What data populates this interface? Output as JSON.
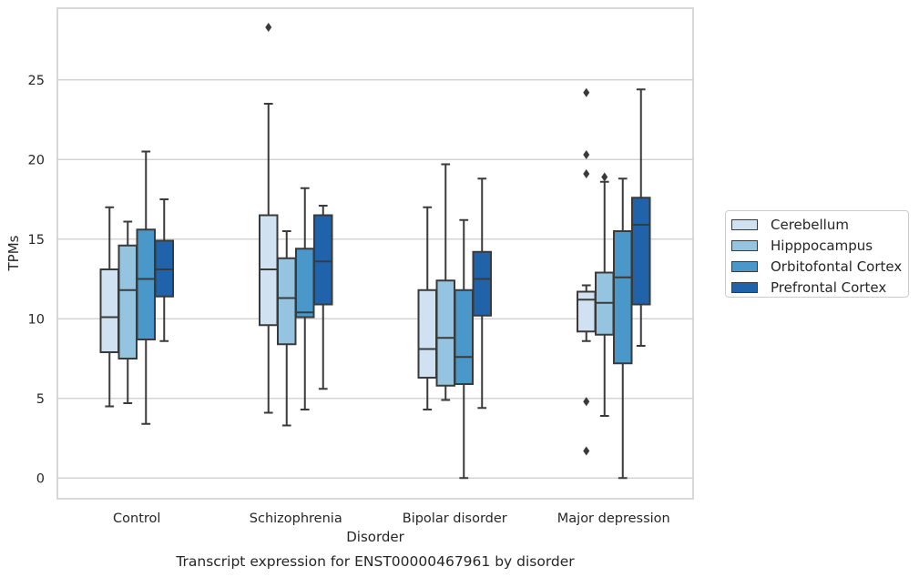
{
  "chart_data": {
    "type": "box",
    "title": "Transcript expression for ENST00000467961 by disorder",
    "xlabel": "Disorder",
    "ylabel": "TPMs",
    "ylim": [
      -1.3,
      29.5
    ],
    "yticks": [
      0,
      5,
      10,
      15,
      20,
      25
    ],
    "grid": "horizontal",
    "legend_position": "right",
    "categories": [
      "Control",
      "Schizophrenia",
      "Bipolar disorder",
      "Major depression"
    ],
    "series": [
      {
        "name": "Cerebellum",
        "color": "#d0e1f2",
        "boxes": [
          {
            "whisker_low": 4.5,
            "q1": 7.9,
            "median": 10.1,
            "q3": 13.1,
            "whisker_high": 17.0,
            "outliers": []
          },
          {
            "whisker_low": 4.1,
            "q1": 9.6,
            "median": 13.1,
            "q3": 16.5,
            "whisker_high": 23.5,
            "outliers": [
              28.3
            ]
          },
          {
            "whisker_low": 4.3,
            "q1": 6.3,
            "median": 8.1,
            "q3": 11.8,
            "whisker_high": 17.0,
            "outliers": []
          },
          {
            "whisker_low": 8.6,
            "q1": 9.2,
            "median": 11.2,
            "q3": 11.7,
            "whisker_high": 12.1,
            "outliers": [
              24.2,
              20.3,
              19.1,
              4.8,
              1.7
            ]
          }
        ]
      },
      {
        "name": "Hipppocampus",
        "color": "#94c4df",
        "boxes": [
          {
            "whisker_low": 4.7,
            "q1": 7.5,
            "median": 11.8,
            "q3": 14.6,
            "whisker_high": 16.1,
            "outliers": []
          },
          {
            "whisker_low": 3.3,
            "q1": 8.4,
            "median": 11.3,
            "q3": 13.8,
            "whisker_high": 15.5,
            "outliers": []
          },
          {
            "whisker_low": 4.9,
            "q1": 5.8,
            "median": 8.8,
            "q3": 12.4,
            "whisker_high": 19.7,
            "outliers": []
          },
          {
            "whisker_low": 3.9,
            "q1": 9.0,
            "median": 11.0,
            "q3": 12.9,
            "whisker_high": 18.6,
            "outliers": [
              18.9
            ]
          }
        ]
      },
      {
        "name": "Orbitofontal Cortex",
        "color": "#4a98c9",
        "boxes": [
          {
            "whisker_low": 3.4,
            "q1": 8.7,
            "median": 12.5,
            "q3": 15.6,
            "whisker_high": 20.5,
            "outliers": []
          },
          {
            "whisker_low": 4.3,
            "q1": 10.1,
            "median": 10.4,
            "q3": 14.4,
            "whisker_high": 18.2,
            "outliers": []
          },
          {
            "whisker_low": 0.0,
            "q1": 5.9,
            "median": 7.6,
            "q3": 11.8,
            "whisker_high": 16.2,
            "outliers": []
          },
          {
            "whisker_low": 0.0,
            "q1": 7.2,
            "median": 12.6,
            "q3": 15.5,
            "whisker_high": 18.8,
            "outliers": []
          }
        ]
      },
      {
        "name": "Prefrontal Cortex",
        "color": "#2163aa",
        "boxes": [
          {
            "whisker_low": 8.6,
            "q1": 11.4,
            "median": 13.1,
            "q3": 14.9,
            "whisker_high": 17.5,
            "outliers": []
          },
          {
            "whisker_low": 5.6,
            "q1": 10.9,
            "median": 13.6,
            "q3": 16.5,
            "whisker_high": 17.1,
            "outliers": []
          },
          {
            "whisker_low": 4.4,
            "q1": 10.2,
            "median": 12.5,
            "q3": 14.2,
            "whisker_high": 18.8,
            "outliers": []
          },
          {
            "whisker_low": 8.3,
            "q1": 10.9,
            "median": 15.9,
            "q3": 17.6,
            "whisker_high": 24.4,
            "outliers": []
          }
        ]
      }
    ]
  }
}
